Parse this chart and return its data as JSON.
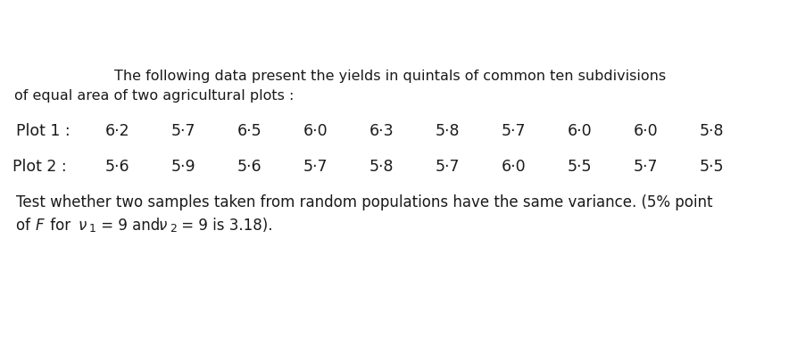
{
  "bg_color": "#ffffff",
  "text_color": "#1a1a1a",
  "title_line1": "The following data present the yields in quintals of common ten subdivisions",
  "title_line2": "of equal area of two agricultural plots :",
  "plot1_label": "Plot 1 :",
  "plot1_values": [
    "6·2",
    "5·7",
    "6·5",
    "6·0",
    "6·3",
    "5·8",
    "5·7",
    "6·0",
    "6·0",
    "5·8"
  ],
  "plot2_label": "Plot 2 :",
  "plot2_values": [
    "5·6",
    "5·9",
    "5·6",
    "5·7",
    "5·8",
    "5·7",
    "6·0",
    "5·5",
    "5·7",
    "5·5"
  ],
  "footer_line1": "Test whether two samples taken from random populations have the same variance. (5% point",
  "title_fontsize": 11.5,
  "data_fontsize": 12.5,
  "footer_fontsize": 12.0,
  "fig_width": 8.84,
  "fig_height": 3.88,
  "dpi": 100
}
